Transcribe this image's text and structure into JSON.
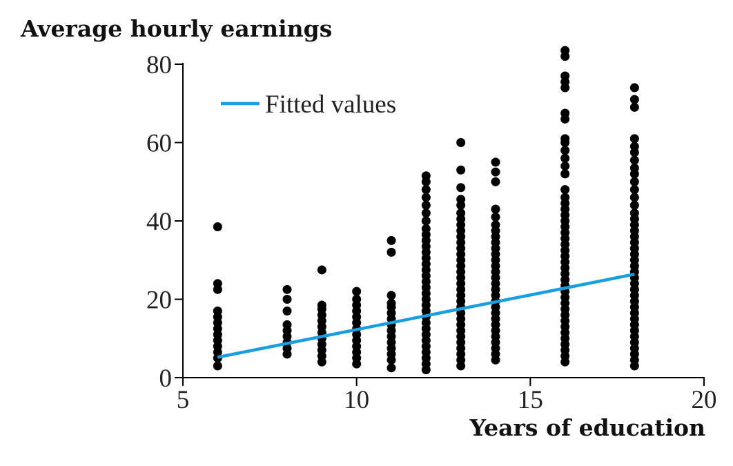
{
  "chart_data": {
    "type": "scatter",
    "title": "",
    "ylabel": "Average hourly earnings",
    "xlabel": "Years of education",
    "xlim": [
      5,
      20
    ],
    "ylim": [
      0,
      80
    ],
    "xticks": [
      5,
      10,
      15,
      20
    ],
    "yticks": [
      0,
      20,
      40,
      60,
      80
    ],
    "grid": false,
    "legend_position": "top-left",
    "colors": {
      "points": "#000000",
      "fit_line": "#1a9ee0",
      "axes": "#000000"
    },
    "series": [
      {
        "kind": "points",
        "points": [
          [
            6,
            3
          ],
          [
            6,
            5
          ],
          [
            6,
            6.5
          ],
          [
            6,
            8
          ],
          [
            6,
            9.5
          ],
          [
            6,
            11
          ],
          [
            6,
            12.5
          ],
          [
            6,
            14
          ],
          [
            6,
            15.5
          ],
          [
            6,
            17
          ],
          [
            6,
            22.5
          ],
          [
            6,
            24
          ],
          [
            6,
            38.5
          ],
          [
            8,
            6
          ],
          [
            8,
            7.5
          ],
          [
            8,
            9
          ],
          [
            8,
            10.5
          ],
          [
            8,
            12
          ],
          [
            8,
            13.5
          ],
          [
            8,
            17
          ],
          [
            8,
            20
          ],
          [
            8,
            22.5
          ],
          [
            9,
            4
          ],
          [
            9,
            5.5
          ],
          [
            9,
            7
          ],
          [
            9,
            8.5
          ],
          [
            9,
            10
          ],
          [
            9,
            11.5
          ],
          [
            9,
            13
          ],
          [
            9,
            14.5
          ],
          [
            9,
            16
          ],
          [
            9,
            17.5
          ],
          [
            9,
            18.5
          ],
          [
            9,
            27.5
          ],
          [
            10,
            3.5
          ],
          [
            10,
            5
          ],
          [
            10,
            6.5
          ],
          [
            10,
            8
          ],
          [
            10,
            9.5
          ],
          [
            10,
            11
          ],
          [
            10,
            12.5
          ],
          [
            10,
            14
          ],
          [
            10,
            15.5
          ],
          [
            10,
            17
          ],
          [
            10,
            18.5
          ],
          [
            10,
            20
          ],
          [
            10,
            22
          ],
          [
            11,
            2.5
          ],
          [
            11,
            4.5
          ],
          [
            11,
            6
          ],
          [
            11,
            7.5
          ],
          [
            11,
            9
          ],
          [
            11,
            10.5
          ],
          [
            11,
            12
          ],
          [
            11,
            13.5
          ],
          [
            11,
            15
          ],
          [
            11,
            16.5
          ],
          [
            11,
            18
          ],
          [
            11,
            19
          ],
          [
            11,
            21
          ],
          [
            11,
            32
          ],
          [
            11,
            35
          ],
          [
            12,
            2
          ],
          [
            12,
            3.5
          ],
          [
            12,
            5
          ],
          [
            12,
            6.5
          ],
          [
            12,
            8
          ],
          [
            12,
            9.5
          ],
          [
            12,
            11
          ],
          [
            12,
            12.5
          ],
          [
            12,
            14
          ],
          [
            12,
            15.5
          ],
          [
            12,
            17
          ],
          [
            12,
            18.5
          ],
          [
            12,
            20
          ],
          [
            12,
            21.5
          ],
          [
            12,
            23
          ],
          [
            12,
            24.5
          ],
          [
            12,
            26
          ],
          [
            12,
            27.5
          ],
          [
            12,
            29
          ],
          [
            12,
            30.5
          ],
          [
            12,
            32
          ],
          [
            12,
            33.5
          ],
          [
            12,
            35
          ],
          [
            12,
            36.5
          ],
          [
            12,
            38
          ],
          [
            12,
            40
          ],
          [
            12,
            42
          ],
          [
            12,
            44
          ],
          [
            12,
            46
          ],
          [
            12,
            48
          ],
          [
            12,
            50
          ],
          [
            12,
            51.5
          ],
          [
            13,
            3
          ],
          [
            13,
            4.5
          ],
          [
            13,
            6
          ],
          [
            13,
            7.5
          ],
          [
            13,
            9
          ],
          [
            13,
            10.5
          ],
          [
            13,
            12
          ],
          [
            13,
            13.5
          ],
          [
            13,
            15
          ],
          [
            13,
            16.5
          ],
          [
            13,
            18
          ],
          [
            13,
            19.5
          ],
          [
            13,
            21
          ],
          [
            13,
            22.5
          ],
          [
            13,
            24
          ],
          [
            13,
            25.5
          ],
          [
            13,
            27
          ],
          [
            13,
            28.5
          ],
          [
            13,
            30
          ],
          [
            13,
            31.5
          ],
          [
            13,
            33
          ],
          [
            13,
            34.5
          ],
          [
            13,
            36
          ],
          [
            13,
            37.5
          ],
          [
            13,
            39
          ],
          [
            13,
            40.5
          ],
          [
            13,
            42
          ],
          [
            13,
            44
          ],
          [
            13,
            45.5
          ],
          [
            13,
            48.5
          ],
          [
            13,
            53
          ],
          [
            13,
            60
          ],
          [
            14,
            4.5
          ],
          [
            14,
            6
          ],
          [
            14,
            7.5
          ],
          [
            14,
            9
          ],
          [
            14,
            10.5
          ],
          [
            14,
            12
          ],
          [
            14,
            13.5
          ],
          [
            14,
            15
          ],
          [
            14,
            16.5
          ],
          [
            14,
            18
          ],
          [
            14,
            19.5
          ],
          [
            14,
            21
          ],
          [
            14,
            22.5
          ],
          [
            14,
            24
          ],
          [
            14,
            25.5
          ],
          [
            14,
            27
          ],
          [
            14,
            28.5
          ],
          [
            14,
            30
          ],
          [
            14,
            31.5
          ],
          [
            14,
            33
          ],
          [
            14,
            34.5
          ],
          [
            14,
            36
          ],
          [
            14,
            37.5
          ],
          [
            14,
            39
          ],
          [
            14,
            41
          ],
          [
            14,
            43
          ],
          [
            14,
            50
          ],
          [
            14,
            52.5
          ],
          [
            14,
            55
          ],
          [
            16,
            4
          ],
          [
            16,
            5.5
          ],
          [
            16,
            7
          ],
          [
            16,
            8.5
          ],
          [
            16,
            10
          ],
          [
            16,
            11.5
          ],
          [
            16,
            13
          ],
          [
            16,
            14.5
          ],
          [
            16,
            16
          ],
          [
            16,
            17.5
          ],
          [
            16,
            19
          ],
          [
            16,
            20.5
          ],
          [
            16,
            22
          ],
          [
            16,
            23.5
          ],
          [
            16,
            25
          ],
          [
            16,
            26.5
          ],
          [
            16,
            28
          ],
          [
            16,
            29.5
          ],
          [
            16,
            31
          ],
          [
            16,
            32.5
          ],
          [
            16,
            34
          ],
          [
            16,
            35.5
          ],
          [
            16,
            37
          ],
          [
            16,
            38.5
          ],
          [
            16,
            40
          ],
          [
            16,
            41.5
          ],
          [
            16,
            43
          ],
          [
            16,
            44.5
          ],
          [
            16,
            46
          ],
          [
            16,
            48
          ],
          [
            16,
            52
          ],
          [
            16,
            54
          ],
          [
            16,
            56
          ],
          [
            16,
            58
          ],
          [
            16,
            60
          ],
          [
            16,
            61
          ],
          [
            16,
            66
          ],
          [
            16,
            67.5
          ],
          [
            16,
            74
          ],
          [
            16,
            75.5
          ],
          [
            16,
            77
          ],
          [
            16,
            82
          ],
          [
            16,
            83.5
          ],
          [
            18,
            3
          ],
          [
            18,
            4.5
          ],
          [
            18,
            6
          ],
          [
            18,
            7.5
          ],
          [
            18,
            9
          ],
          [
            18,
            10.5
          ],
          [
            18,
            12
          ],
          [
            18,
            13.5
          ],
          [
            18,
            15
          ],
          [
            18,
            16.5
          ],
          [
            18,
            18
          ],
          [
            18,
            19.5
          ],
          [
            18,
            21
          ],
          [
            18,
            22.5
          ],
          [
            18,
            24
          ],
          [
            18,
            25.5
          ],
          [
            18,
            27
          ],
          [
            18,
            28.5
          ],
          [
            18,
            30
          ],
          [
            18,
            31.5
          ],
          [
            18,
            33
          ],
          [
            18,
            34.5
          ],
          [
            18,
            36
          ],
          [
            18,
            37.5
          ],
          [
            18,
            39
          ],
          [
            18,
            40.5
          ],
          [
            18,
            42
          ],
          [
            18,
            44
          ],
          [
            18,
            46
          ],
          [
            18,
            48
          ],
          [
            18,
            50
          ],
          [
            18,
            52
          ],
          [
            18,
            53.5
          ],
          [
            18,
            55.5
          ],
          [
            18,
            57.5
          ],
          [
            18,
            59
          ],
          [
            18,
            61
          ],
          [
            18,
            69
          ],
          [
            18,
            71
          ],
          [
            18,
            74
          ]
        ]
      },
      {
        "kind": "line",
        "name": "Fitted values",
        "x": [
          6,
          18
        ],
        "y": [
          5.2,
          26.4
        ]
      }
    ]
  }
}
